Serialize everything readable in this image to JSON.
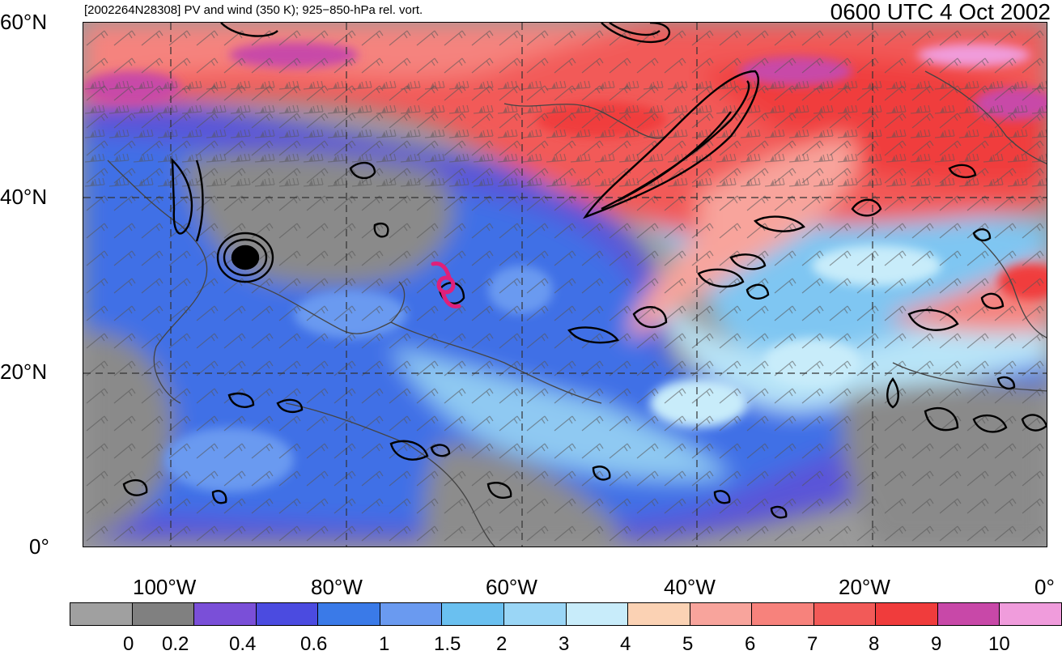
{
  "header": {
    "subtitle": "[2002264N28308] PV and wind (350 K); 925−850-hPa rel. vort.",
    "title": "0600 UTC 4 Oct 2002"
  },
  "axes": {
    "lat_labels": [
      "60°N",
      "40°N",
      "20°N",
      "0°"
    ],
    "lon_labels": [
      "100°W",
      "80°W",
      "60°W",
      "40°W",
      "20°W",
      "0°"
    ]
  },
  "colorbar": {
    "colors": [
      "#a0a0a0",
      "#808080",
      "#7a4fd8",
      "#4b4be0",
      "#3a7ae8",
      "#6a9af0",
      "#6ac0f0",
      "#9ad6f6",
      "#c8ecfa",
      "#fbd2b4",
      "#f8a49c",
      "#f7827c",
      "#f25a58",
      "#f03c3c",
      "#c848a8",
      "#f09cdc"
    ],
    "labels": [
      "0",
      "0.2",
      "0.4",
      "0.6",
      "1",
      "1.5",
      "2",
      "3",
      "4",
      "5",
      "6",
      "7",
      "8",
      "9",
      "10"
    ]
  },
  "storm": {
    "symbol": "hurricane-symbol",
    "color": "#e0207a"
  }
}
